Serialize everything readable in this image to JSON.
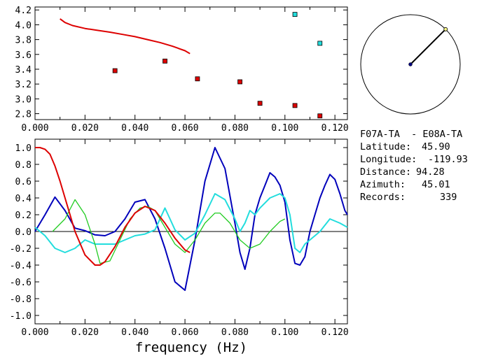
{
  "station_info": {
    "pair": "F07A-TA  - E08A-TA",
    "latitude_label": "Latitude:",
    "latitude": "45.90",
    "longitude_label": "Longitude:",
    "longitude": "-119.93",
    "distance_label": "Distance:",
    "distance": "94.28",
    "azimuth_label": "Azimuth:",
    "azimuth": "45.01",
    "records_label": "Records:",
    "records": "339"
  },
  "colors": {
    "red": "#dd0000",
    "blue": "#0000bb",
    "cyan": "#22dddd",
    "green": "#22cc22",
    "axis": "#000000"
  },
  "chart_data": [
    {
      "type": "scatter",
      "title": "",
      "xlim": [
        0.0,
        0.125
      ],
      "ylim": [
        2.72,
        4.24
      ],
      "x_ticks": [
        "0.000",
        "0.020",
        "0.040",
        "0.060",
        "0.080",
        "0.100",
        "0.120"
      ],
      "y_ticks": [
        "2.8",
        "3.0",
        "3.2",
        "3.4",
        "3.6",
        "3.8",
        "4.0",
        "4.2"
      ],
      "series": [
        {
          "kind": "line",
          "color": "red",
          "x": [
            0.01,
            0.012,
            0.015,
            0.02,
            0.025,
            0.03,
            0.035,
            0.04,
            0.045,
            0.05,
            0.055,
            0.06,
            0.062
          ],
          "y": [
            4.08,
            4.03,
            3.99,
            3.95,
            3.925,
            3.9,
            3.87,
            3.84,
            3.8,
            3.76,
            3.71,
            3.65,
            3.61
          ]
        },
        {
          "kind": "points",
          "color": "red",
          "x": [
            0.032,
            0.052,
            0.065,
            0.082,
            0.09,
            0.104,
            0.114
          ],
          "y": [
            3.38,
            3.51,
            3.27,
            3.23,
            2.94,
            2.91,
            2.77
          ]
        },
        {
          "kind": "points",
          "color": "cyan",
          "x": [
            0.104,
            0.114
          ],
          "y": [
            4.14,
            3.75
          ]
        }
      ]
    },
    {
      "type": "line",
      "xlabel": "frequency (Hz)",
      "xlim": [
        0.0,
        0.125
      ],
      "ylim": [
        -1.1,
        1.1
      ],
      "x_ticks": [
        "0.000",
        "0.020",
        "0.040",
        "0.060",
        "0.080",
        "0.100",
        "0.120"
      ],
      "y_ticks": [
        "1.0",
        "0.8",
        "0.6",
        "0.4",
        "0.2",
        "0.0",
        "-0.2",
        "-0.4",
        "-0.6",
        "-0.8",
        "-1.0"
      ],
      "series": [
        {
          "color": "blue",
          "x": [
            0.0,
            0.004,
            0.008,
            0.012,
            0.016,
            0.02,
            0.024,
            0.028,
            0.032,
            0.036,
            0.04,
            0.044,
            0.048,
            0.052,
            0.056,
            0.06,
            0.064,
            0.068,
            0.072,
            0.076,
            0.08,
            0.082,
            0.084,
            0.086,
            0.088,
            0.09,
            0.092,
            0.094,
            0.096,
            0.098,
            0.1,
            0.102,
            0.104,
            0.106,
            0.108,
            0.11,
            0.112,
            0.114,
            0.116,
            0.118,
            0.12,
            0.122,
            0.124,
            0.125
          ],
          "y": [
            0.0,
            0.2,
            0.41,
            0.25,
            0.04,
            0.01,
            -0.04,
            -0.05,
            0.0,
            0.15,
            0.35,
            0.38,
            0.15,
            -0.2,
            -0.6,
            -0.7,
            -0.1,
            0.6,
            1.0,
            0.75,
            0.1,
            -0.25,
            -0.45,
            -0.2,
            0.2,
            0.4,
            0.55,
            0.7,
            0.65,
            0.55,
            0.35,
            -0.1,
            -0.38,
            -0.4,
            -0.3,
            0.0,
            0.2,
            0.4,
            0.55,
            0.68,
            0.62,
            0.45,
            0.25,
            0.2
          ]
        },
        {
          "color": "cyan",
          "x": [
            0.0,
            0.004,
            0.008,
            0.012,
            0.016,
            0.02,
            0.024,
            0.028,
            0.032,
            0.036,
            0.04,
            0.044,
            0.048,
            0.052,
            0.054,
            0.056,
            0.06,
            0.064,
            0.068,
            0.072,
            0.076,
            0.08,
            0.082,
            0.084,
            0.086,
            0.088,
            0.09,
            0.094,
            0.098,
            0.1,
            0.102,
            0.104,
            0.106,
            0.108,
            0.11,
            0.114,
            0.118,
            0.122,
            0.125
          ],
          "y": [
            0.05,
            -0.05,
            -0.2,
            -0.25,
            -0.2,
            -0.1,
            -0.15,
            -0.15,
            -0.15,
            -0.1,
            -0.05,
            -0.03,
            0.02,
            0.28,
            0.15,
            0.02,
            -0.1,
            -0.02,
            0.2,
            0.45,
            0.38,
            0.15,
            0.0,
            0.1,
            0.25,
            0.2,
            0.28,
            0.4,
            0.45,
            0.4,
            0.2,
            -0.2,
            -0.25,
            -0.15,
            -0.1,
            0.0,
            0.15,
            0.1,
            0.05
          ]
        },
        {
          "color": "green",
          "x": [
            0.007,
            0.012,
            0.016,
            0.02,
            0.024,
            0.026,
            0.03,
            0.034,
            0.038,
            0.042,
            0.045,
            0.048,
            0.052,
            0.056,
            0.06,
            0.064,
            0.068,
            0.072,
            0.074,
            0.078,
            0.082,
            0.086,
            0.09,
            0.094,
            0.098,
            0.1
          ],
          "y": [
            0.0,
            0.15,
            0.38,
            0.2,
            -0.15,
            -0.38,
            -0.35,
            -0.1,
            0.15,
            0.28,
            0.3,
            0.25,
            0.05,
            -0.15,
            -0.25,
            -0.1,
            0.1,
            0.22,
            0.22,
            0.1,
            -0.1,
            -0.2,
            -0.15,
            0.0,
            0.12,
            0.15
          ]
        },
        {
          "color": "red",
          "x": [
            0.0,
            0.002,
            0.004,
            0.006,
            0.008,
            0.01,
            0.013,
            0.016,
            0.02,
            0.024,
            0.026,
            0.028,
            0.032,
            0.036,
            0.04,
            0.044,
            0.048,
            0.052,
            0.056,
            0.06,
            0.062
          ],
          "y": [
            1.0,
            1.0,
            0.98,
            0.92,
            0.78,
            0.6,
            0.3,
            0.0,
            -0.28,
            -0.4,
            -0.4,
            -0.36,
            -0.18,
            0.05,
            0.22,
            0.3,
            0.25,
            0.1,
            -0.08,
            -0.22,
            -0.25
          ]
        }
      ]
    }
  ],
  "polar_plot": {
    "azimuth_deg": 45.01,
    "marker_color": "#000080",
    "end_marker_color": "#ffff88"
  }
}
